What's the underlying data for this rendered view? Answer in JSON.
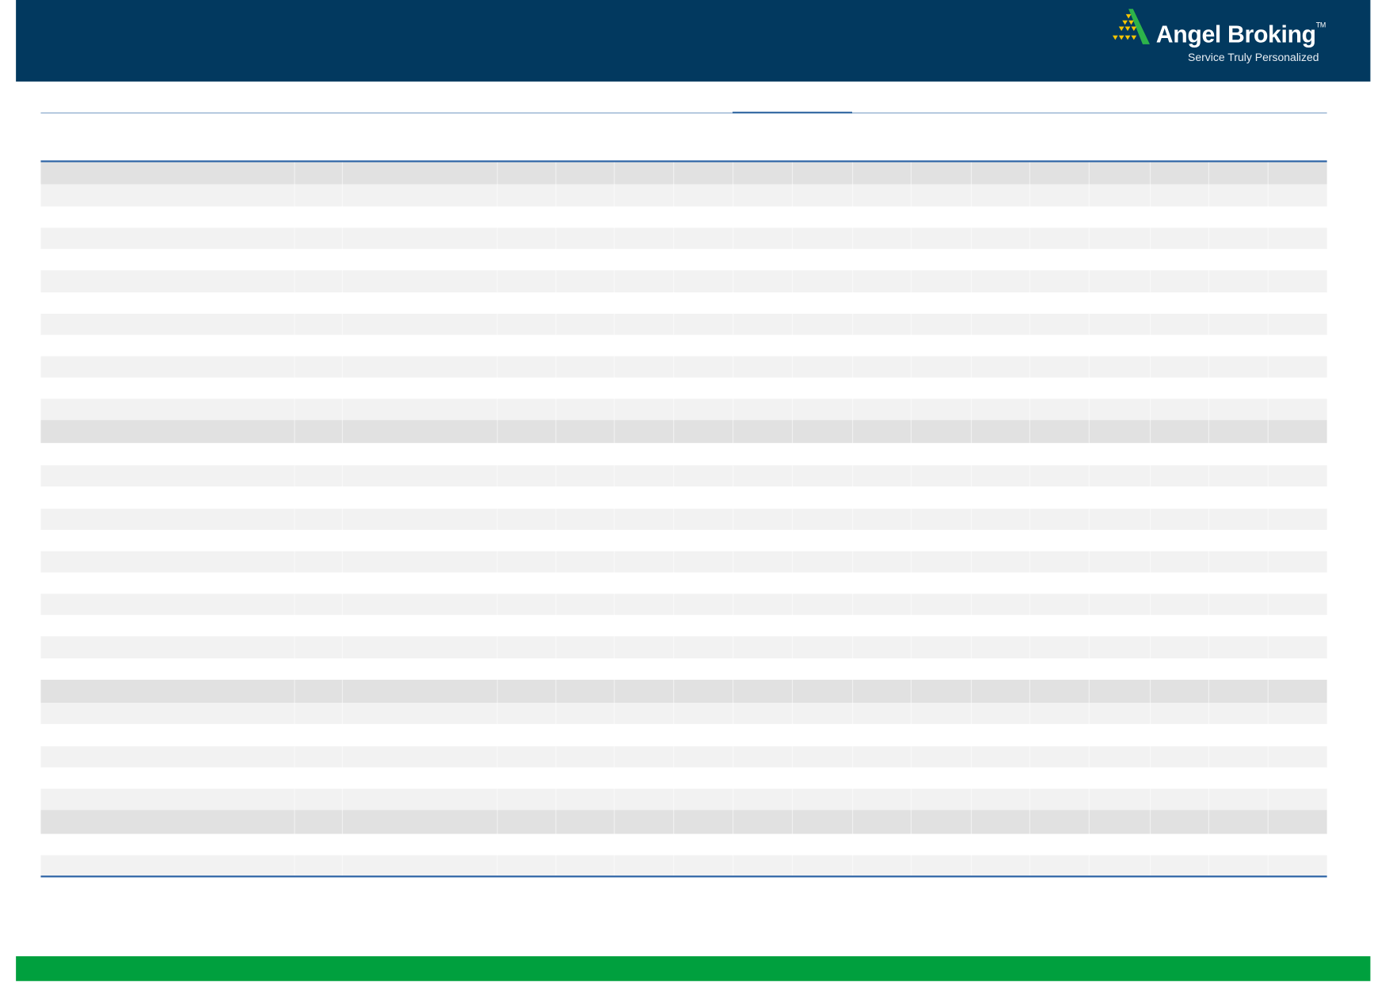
{
  "header": {
    "brand": {
      "name": "Angel Broking",
      "trademark": "TM",
      "tagline": "Service Truly Personalized",
      "logo_icon": "triangle-pyramid-logo"
    },
    "background_color": "#02395f"
  },
  "footer": {
    "background_color": "#00a03e"
  },
  "table": {
    "header_color": "#e1e1e1",
    "stripe_color": "#f2f2f2",
    "border_color": "#2f65a6"
  }
}
